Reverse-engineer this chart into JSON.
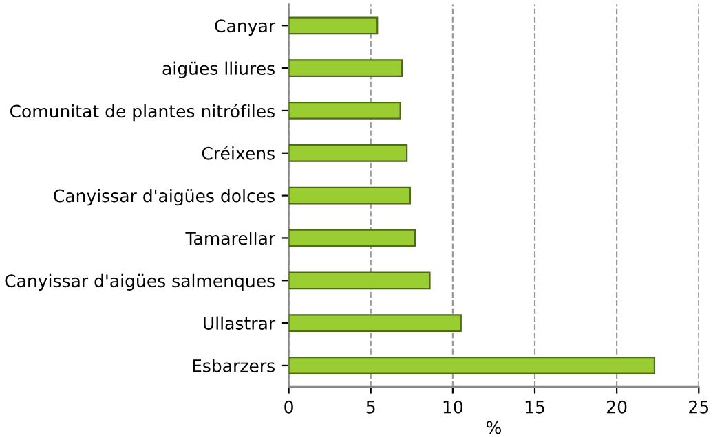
{
  "chart_data": {
    "type": "bar",
    "orientation": "horizontal",
    "xlabel": "%",
    "categories": [
      "Canyar",
      "aigües lliures",
      "Comunitat de plantes nitrófiles",
      "Créixens",
      "Canyissar d'aigües dolces",
      "Tamarellar",
      "Canyissar d'aigües salmenques",
      "Ullastrar",
      "Esbarzers"
    ],
    "values": [
      5.4,
      6.9,
      6.8,
      7.2,
      7.4,
      7.7,
      8.6,
      10.5,
      22.3
    ],
    "color": "#9acd32",
    "xlim": [
      0,
      25
    ],
    "xticks": [
      0,
      5,
      10,
      15,
      20,
      25
    ],
    "grid": "x"
  }
}
